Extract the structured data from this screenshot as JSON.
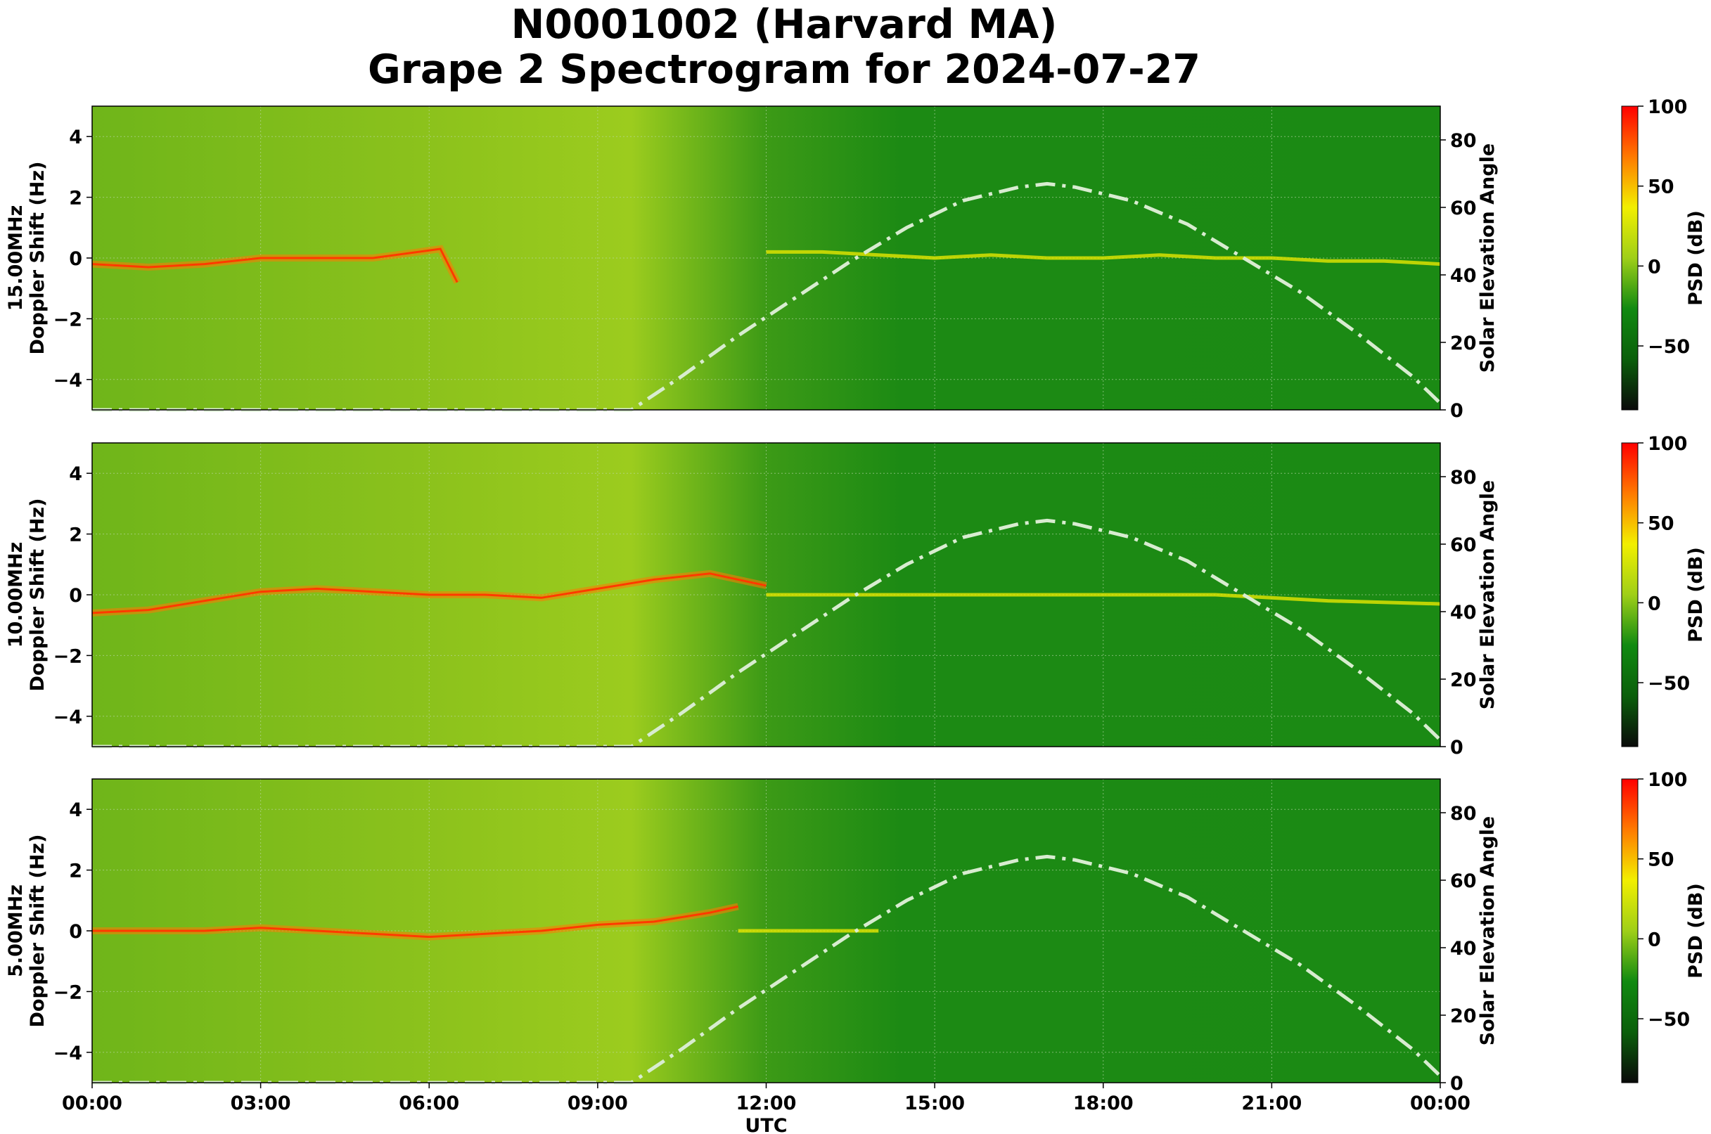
{
  "figure": {
    "title_line1": "N0001002 (Harvard MA)",
    "title_line2": "Grape 2 Spectrogram for 2024-07-27"
  },
  "chart_data": {
    "type": "heatmap",
    "x_tick_labels": [
      "00:00",
      "03:00",
      "06:00",
      "09:00",
      "12:00",
      "15:00",
      "18:00",
      "21:00",
      "00:00"
    ],
    "x_ticks_hours": [
      0,
      3,
      6,
      9,
      12,
      15,
      18,
      21,
      24
    ],
    "xlabel": "UTC",
    "xlim_hours": [
      0,
      24
    ],
    "ylabel_left": "Doppler Shift (Hz)",
    "ylim_left": [
      -5,
      5
    ],
    "yticks_left": [
      -4,
      -2,
      0,
      2,
      4
    ],
    "ylabel_right": "Solar Elevation Angle",
    "ylim_right": [
      0,
      90
    ],
    "yticks_right": [
      0,
      20,
      40,
      60,
      80
    ],
    "colorbar": {
      "label": "PSD (dB)",
      "range": [
        -90,
        100
      ],
      "ticks": [
        100,
        50,
        0,
        -50
      ],
      "colors": [
        "#0a0a0a",
        "#0b5f0b",
        "#118a11",
        "#9fcf18",
        "#f2ef00",
        "#ff7a00",
        "#ff0000"
      ]
    },
    "grid": true,
    "solar_elevation_curve": {
      "style": "dash-dot",
      "color": "#d8ecd0",
      "points": [
        [
          0,
          0
        ],
        [
          9.6,
          0
        ],
        [
          10.5,
          10
        ],
        [
          11.5,
          22
        ],
        [
          12.5,
          33
        ],
        [
          13.5,
          44
        ],
        [
          14.5,
          54
        ],
        [
          15.5,
          62
        ],
        [
          16.5,
          66
        ],
        [
          17,
          67
        ],
        [
          17.5,
          66
        ],
        [
          18.5,
          62
        ],
        [
          19.5,
          55
        ],
        [
          20.5,
          45
        ],
        [
          21.5,
          35
        ],
        [
          22.5,
          23
        ],
        [
          23.5,
          10
        ],
        [
          24,
          2
        ]
      ]
    },
    "panels": [
      {
        "frequency_label": "15.00MHz",
        "doppler_trace": [
          [
            0,
            -0.2
          ],
          [
            1,
            -0.3
          ],
          [
            2,
            -0.2
          ],
          [
            3,
            0
          ],
          [
            4,
            0
          ],
          [
            5,
            0
          ],
          [
            5.8,
            0.2
          ],
          [
            6.2,
            0.3
          ],
          [
            6.5,
            -0.8
          ]
        ],
        "day_trace": [
          [
            12,
            0.2
          ],
          [
            13,
            0.2
          ],
          [
            14,
            0.1
          ],
          [
            15,
            0
          ],
          [
            16,
            0.1
          ],
          [
            17,
            0
          ],
          [
            18,
            0
          ],
          [
            19,
            0.1
          ],
          [
            20,
            0
          ],
          [
            21,
            0
          ],
          [
            22,
            -0.1
          ],
          [
            23,
            -0.1
          ],
          [
            24,
            -0.2
          ]
        ]
      },
      {
        "frequency_label": "10.00MHz",
        "doppler_trace": [
          [
            0,
            -0.6
          ],
          [
            1,
            -0.5
          ],
          [
            2,
            -0.2
          ],
          [
            3,
            0.1
          ],
          [
            4,
            0.2
          ],
          [
            5,
            0.1
          ],
          [
            6,
            0
          ],
          [
            7,
            0
          ],
          [
            8,
            -0.1
          ],
          [
            9,
            0.2
          ],
          [
            10,
            0.5
          ],
          [
            11,
            0.7
          ],
          [
            12,
            0.3
          ]
        ],
        "day_trace": [
          [
            12,
            0
          ],
          [
            14,
            0
          ],
          [
            16,
            0
          ],
          [
            18,
            0
          ],
          [
            20,
            0
          ],
          [
            22,
            -0.2
          ],
          [
            24,
            -0.3
          ]
        ]
      },
      {
        "frequency_label": "5.00MHz",
        "doppler_trace": [
          [
            0,
            0
          ],
          [
            1,
            0
          ],
          [
            2,
            0
          ],
          [
            3,
            0.1
          ],
          [
            4,
            0
          ],
          [
            5,
            -0.1
          ],
          [
            6,
            -0.2
          ],
          [
            7,
            -0.1
          ],
          [
            8,
            0
          ],
          [
            9,
            0.2
          ],
          [
            10,
            0.3
          ],
          [
            11,
            0.6
          ],
          [
            11.5,
            0.8
          ]
        ],
        "day_trace": [
          [
            11.5,
            0
          ],
          [
            13,
            0
          ],
          [
            14,
            0
          ]
        ]
      }
    ]
  }
}
